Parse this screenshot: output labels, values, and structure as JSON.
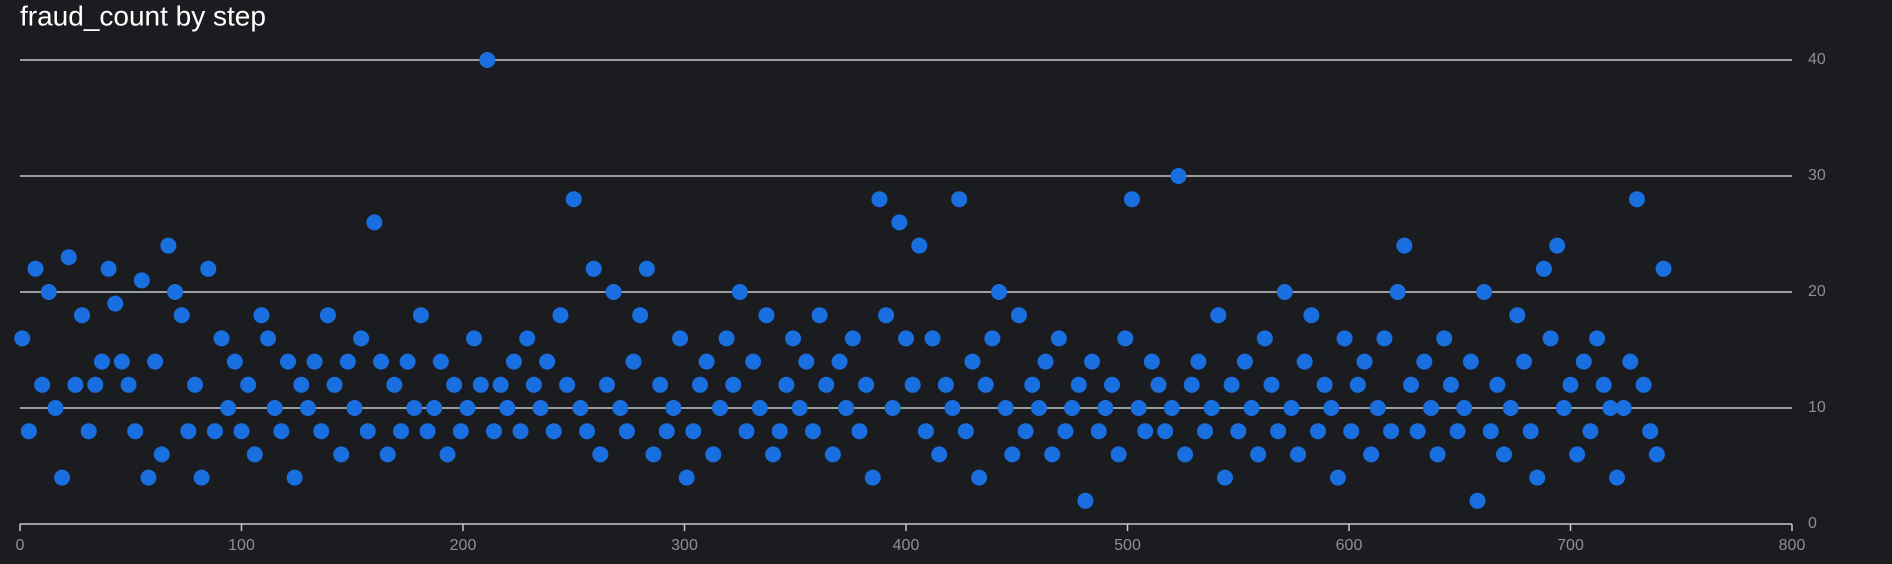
{
  "chart_data": {
    "type": "scatter",
    "title": "fraud_count by step",
    "series": [
      {
        "color": "#1a6fe0",
        "x": [
          1,
          4,
          7,
          10,
          13,
          16,
          19,
          22,
          25,
          28,
          31,
          34,
          37,
          40,
          43,
          46,
          49,
          52,
          55,
          58,
          61,
          64,
          67,
          70,
          73,
          76,
          79,
          82,
          85,
          88,
          91,
          94,
          97,
          100,
          103,
          106,
          109,
          112,
          115,
          118,
          121,
          124,
          127,
          130,
          133,
          136,
          139,
          142,
          145,
          148,
          151,
          154,
          157,
          160,
          163,
          166,
          169,
          172,
          175,
          178,
          181,
          184,
          187,
          190,
          193,
          196,
          199,
          202,
          205,
          208,
          211,
          214,
          217,
          220,
          223,
          226,
          229,
          232,
          235,
          238,
          241,
          244,
          247,
          250,
          253,
          256,
          259,
          262,
          265,
          268,
          271,
          274,
          277,
          280,
          283,
          286,
          289,
          292,
          295,
          298,
          301,
          304,
          307,
          310,
          313,
          316,
          319,
          322,
          325,
          328,
          331,
          334,
          337,
          340,
          343,
          346,
          349,
          352,
          355,
          358,
          361,
          364,
          367,
          370,
          373,
          376,
          379,
          382,
          385,
          388,
          391,
          394,
          397,
          400,
          403,
          406,
          409,
          412,
          415,
          418,
          421,
          424,
          427,
          430,
          433,
          436,
          439,
          442,
          445,
          448,
          451,
          454,
          457,
          460,
          463,
          466,
          469,
          472,
          475,
          478,
          481,
          484,
          487,
          490,
          493,
          496,
          499,
          502,
          505,
          508,
          511,
          514,
          517,
          520,
          523,
          526,
          529,
          532,
          535,
          538,
          541,
          544,
          547,
          550,
          553,
          556,
          559,
          562,
          565,
          568,
          571,
          574,
          577,
          580,
          583,
          586,
          589,
          592,
          595,
          598,
          601,
          604,
          607,
          610,
          613,
          616,
          619,
          622,
          625,
          628,
          631,
          634,
          637,
          640,
          643,
          646,
          649,
          652,
          655,
          658,
          661,
          664,
          667,
          670,
          673,
          676,
          679,
          682,
          685,
          688,
          691,
          694,
          697,
          700,
          703,
          706,
          709,
          712,
          715,
          718,
          721,
          724,
          727,
          730,
          733,
          736,
          739,
          742
        ],
        "values": [
          16,
          8,
          22,
          12,
          20,
          10,
          4,
          23,
          12,
          18,
          8,
          12,
          14,
          22,
          19,
          14,
          12,
          8,
          21,
          4,
          14,
          6,
          24,
          20,
          18,
          8,
          12,
          4,
          22,
          8,
          16,
          10,
          14,
          8,
          12,
          6,
          18,
          16,
          10,
          8,
          14,
          4,
          12,
          10,
          14,
          8,
          18,
          12,
          6,
          14,
          10,
          16,
          8,
          26,
          14,
          6,
          12,
          8,
          14,
          10,
          18,
          8,
          10,
          14,
          6,
          12,
          8,
          10,
          16,
          12,
          40,
          8,
          12,
          10,
          14,
          8,
          16,
          12,
          10,
          14,
          8,
          18,
          12,
          28,
          10,
          8,
          22,
          6,
          12,
          20,
          10,
          8,
          14,
          18,
          22,
          6,
          12,
          8,
          10,
          16,
          4,
          8,
          12,
          14,
          6,
          10,
          16,
          12,
          20,
          8,
          14,
          10,
          18,
          6,
          8,
          12,
          16,
          10,
          14,
          8,
          18,
          12,
          6,
          14,
          10,
          16,
          8,
          12,
          4,
          28,
          18,
          10,
          26,
          16,
          12,
          24,
          8,
          16,
          6,
          12,
          10,
          28,
          8,
          14,
          4,
          12,
          16,
          20,
          10,
          6,
          18,
          8,
          12,
          10,
          14,
          6,
          16,
          8,
          10,
          12,
          2,
          14,
          8,
          10,
          12,
          6,
          16,
          28,
          10,
          8,
          14,
          12,
          8,
          10,
          30,
          6,
          12,
          14,
          8,
          10,
          18,
          4,
          12,
          8,
          14,
          10,
          6,
          16,
          12,
          8,
          20,
          10,
          6,
          14,
          18,
          8,
          12,
          10,
          4,
          16,
          8,
          12,
          14,
          6,
          10,
          16,
          8,
          20,
          24,
          12,
          8,
          14,
          10,
          6,
          16,
          12,
          8,
          10,
          14,
          2,
          20,
          8,
          12,
          6,
          10,
          18,
          14,
          8,
          4,
          22,
          16,
          24,
          10,
          12,
          6,
          14,
          8,
          16,
          12,
          10,
          4,
          10,
          14,
          28,
          12,
          8,
          6,
          22
        ]
      }
    ],
    "xlim": [
      0,
      800
    ],
    "xticks": [
      0,
      100,
      200,
      300,
      400,
      500,
      600,
      700,
      800
    ],
    "ylim": [
      0,
      40
    ],
    "yticks": [
      0,
      10,
      20,
      30,
      40
    ],
    "grid": true
  }
}
